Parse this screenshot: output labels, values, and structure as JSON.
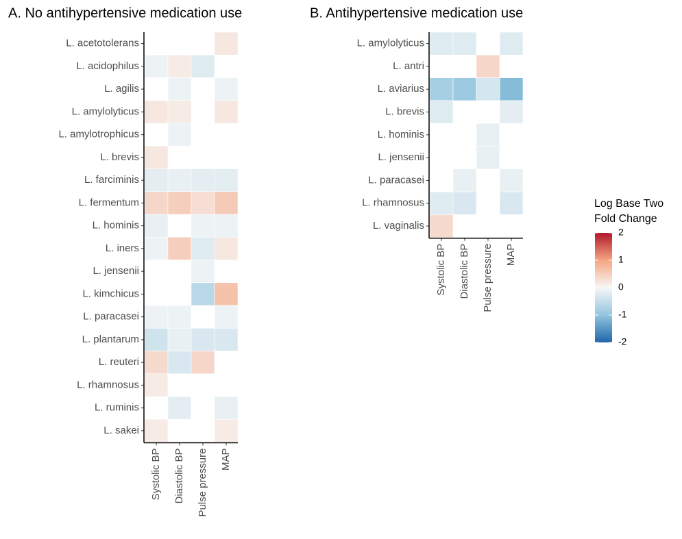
{
  "chart_data": [
    {
      "type": "heatmap",
      "title": "A. No antihypertensive medication use",
      "columns": [
        "Systolic BP",
        "Diastolic BP",
        "Pulse pressure",
        "MAP"
      ],
      "rows": [
        "L. acetotolerans",
        "L. acidophilus",
        "L. agilis",
        "L. amylolyticus",
        "L. amylotrophicus",
        "L. brevis",
        "L. farciminis",
        "L. fermentum",
        "L. hominis",
        "L. iners",
        "L. jensenii",
        "L. kimchicus",
        "L. paracasei",
        "L. plantarum",
        "L. reuteri",
        "L. rhamnosus",
        "L. ruminis",
        "L. sakei"
      ],
      "values": [
        [
          null,
          null,
          null,
          0.2
        ],
        [
          -0.1,
          0.15,
          -0.25,
          null
        ],
        [
          null,
          -0.1,
          null,
          -0.1
        ],
        [
          0.2,
          0.15,
          null,
          0.2
        ],
        [
          null,
          -0.1,
          null,
          null
        ],
        [
          0.2,
          null,
          null,
          null
        ],
        [
          -0.2,
          -0.15,
          -0.2,
          -0.2
        ],
        [
          0.4,
          0.5,
          0.3,
          0.55
        ],
        [
          -0.15,
          null,
          -0.1,
          -0.1
        ],
        [
          -0.1,
          0.5,
          -0.25,
          0.2
        ],
        [
          null,
          null,
          -0.1,
          null
        ],
        [
          null,
          null,
          -0.6,
          0.65
        ],
        [
          -0.1,
          -0.1,
          null,
          -0.1
        ],
        [
          -0.4,
          -0.15,
          -0.3,
          -0.3
        ],
        [
          0.35,
          -0.3,
          0.4,
          null
        ],
        [
          0.15,
          null,
          null,
          null
        ],
        [
          null,
          -0.2,
          null,
          -0.15
        ],
        [
          0.15,
          null,
          null,
          0.15
        ]
      ]
    },
    {
      "type": "heatmap",
      "title": "B. Antihypertensive medication use",
      "columns": [
        "Systolic BP",
        "Diastolic BP",
        "Pulse pressure",
        "MAP"
      ],
      "rows": [
        "L. amylolyticus",
        "L. antri",
        "L. aviarius",
        "L. brevis",
        "L. hominis",
        "L. jensenii",
        "L. paracasei",
        "L. rhamnosus",
        "L. vaginalis"
      ],
      "values": [
        [
          -0.25,
          -0.25,
          null,
          -0.25
        ],
        [
          null,
          null,
          0.4,
          null
        ],
        [
          -0.8,
          -0.9,
          -0.35,
          -1.1
        ],
        [
          -0.25,
          null,
          null,
          -0.2
        ],
        [
          null,
          null,
          -0.15,
          null
        ],
        [
          null,
          null,
          -0.15,
          null
        ],
        [
          null,
          -0.15,
          null,
          -0.15
        ],
        [
          -0.25,
          -0.3,
          null,
          -0.3
        ],
        [
          0.35,
          null,
          null,
          null
        ]
      ]
    }
  ],
  "legend": {
    "title": [
      "Log Base Two",
      "Fold Change"
    ],
    "lim": [
      -2,
      2
    ],
    "ticks": [
      2,
      1,
      0,
      -1,
      -2
    ],
    "colors": [
      "#2166ac",
      "#92c5de",
      "#f7f7f7",
      "#f4a582",
      "#b2182b"
    ]
  }
}
